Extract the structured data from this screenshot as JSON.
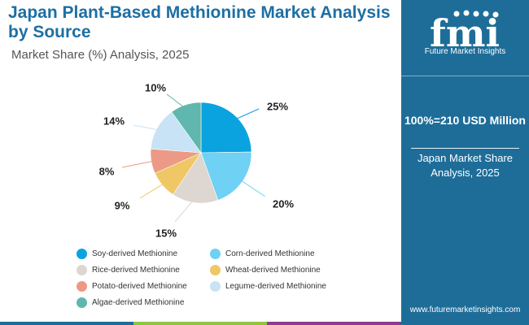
{
  "header": {
    "title": "Japan Plant-Based Methionine Market Analysis by Source",
    "subtitle": "Market Share (%) Analysis, 2025"
  },
  "sidebar": {
    "logo_text": "fmi",
    "brand_name": "Future Market Insights",
    "total": "100%=210 USD Million",
    "caption": "Japan Market Share Analysis, 2025",
    "website": "www.futuremarketinsights.com"
  },
  "colors": {
    "brand_blue": "#1e6d99",
    "title_blue": "#1d6fa3",
    "bottom_bar": [
      "#1e6d99",
      "#8dc63f",
      "#8e3a8f",
      "#1e6d99"
    ]
  },
  "chart_data": {
    "type": "pie",
    "title": "",
    "categories": [
      "Soy-derived Methionine",
      "Corn-derived Methionine",
      "Rice-derived Methionine",
      "Wheat-derived Methionine",
      "Potato-derived Methionine",
      "Legume-derived Methionine",
      "Algae-derived Methionine"
    ],
    "values": [
      25,
      20,
      15,
      9,
      8,
      14,
      10
    ],
    "labels": [
      "25%",
      "20%",
      "15%",
      "9%",
      "8%",
      "14%",
      "10%"
    ],
    "colors": [
      "#0aa3df",
      "#6fd1f3",
      "#ddd6d1",
      "#efc765",
      "#ec9a85",
      "#c7e3f5",
      "#5fb7ad"
    ],
    "start_angle_deg": 0,
    "direction": "clockwise",
    "legend_position": "bottom"
  }
}
